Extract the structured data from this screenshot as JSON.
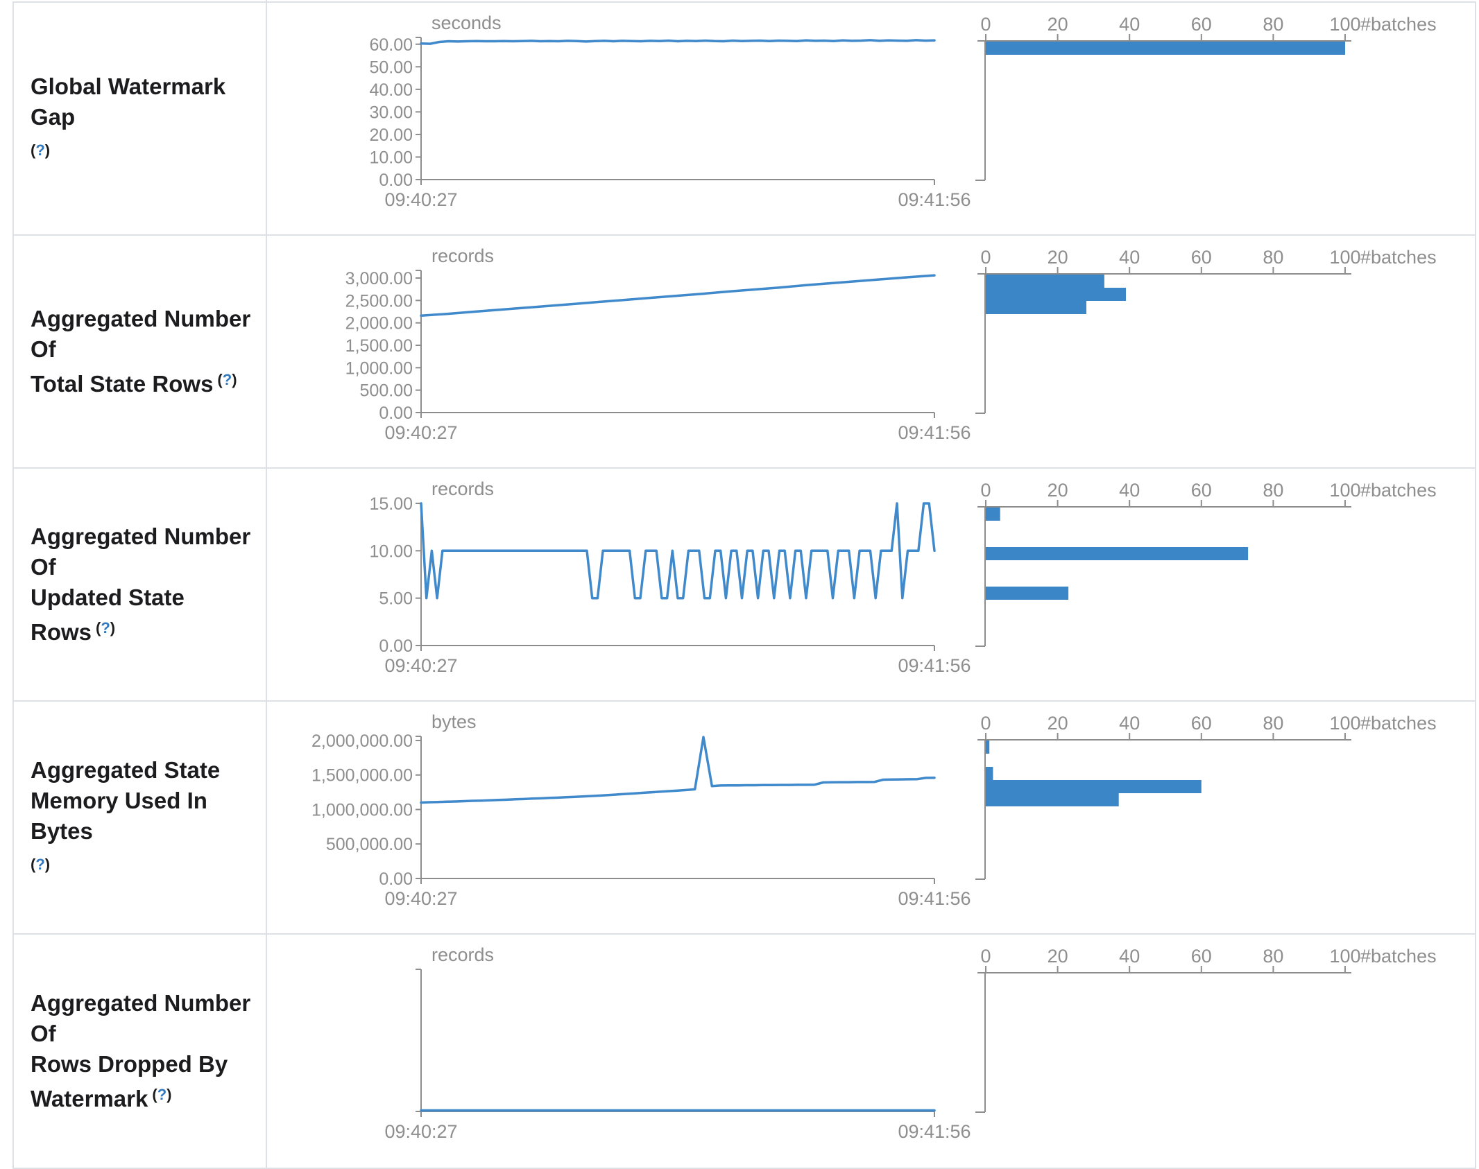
{
  "colors": {
    "bar_fill": "#3b86c7",
    "line_stroke": "#4089cb",
    "axis_line": "#8d8d8d",
    "chart_text": "#8e8e8e",
    "label_text": "#1c1c1e",
    "help_question": "#3178be",
    "table_border": "#dde1e6"
  },
  "axis": {
    "time_start_label": "09:40:27",
    "time_end_label": "09:41:56",
    "hist_ticks": [
      {
        "v": 0,
        "label": "0"
      },
      {
        "v": 20,
        "label": "20"
      },
      {
        "v": 40,
        "label": "40"
      },
      {
        "v": 60,
        "label": "60"
      },
      {
        "v": 80,
        "label": "80"
      },
      {
        "v": 100,
        "label": "100"
      }
    ],
    "hist_axis_label": "#batches",
    "hist_x_max": 100
  },
  "help_label": {
    "open": "(",
    "q": "?",
    "close": ")"
  },
  "chart_data": [
    {
      "id": "global-watermark-gap",
      "label_lines": [
        "Global Watermark Gap"
      ],
      "help_own_line": true,
      "timeline": {
        "type": "line",
        "unit": "seconds",
        "y_domain_max": 63,
        "y_ticks": [
          {
            "v": 0,
            "label": "0.00"
          },
          {
            "v": 10,
            "label": "10.00"
          },
          {
            "v": 20,
            "label": "20.00"
          },
          {
            "v": 30,
            "label": "30.00"
          },
          {
            "v": 40,
            "label": "40.00"
          },
          {
            "v": 50,
            "label": "50.00"
          },
          {
            "v": 60,
            "label": "60.00"
          }
        ],
        "values": [
          60.3,
          60.2,
          61.0,
          61.3,
          61.2,
          61.3,
          61.4,
          61.3,
          61.3,
          61.4,
          61.3,
          61.4,
          61.5,
          61.3,
          61.4,
          61.3,
          61.5,
          61.4,
          61.2,
          61.4,
          61.5,
          61.3,
          61.5,
          61.4,
          61.3,
          61.5,
          61.4,
          61.6,
          61.3,
          61.5,
          61.4,
          61.6,
          61.4,
          61.3,
          61.6,
          61.4,
          61.5,
          61.6,
          61.4,
          61.6,
          61.5,
          61.4,
          61.7,
          61.5,
          61.6,
          61.4,
          61.7,
          61.5,
          61.6,
          61.8,
          61.5,
          61.7,
          61.6,
          61.5,
          61.8,
          61.6,
          61.7
        ]
      },
      "histogram": {
        "type": "bar",
        "bars": [
          {
            "count": 100,
            "bin_y": 56
          }
        ]
      }
    },
    {
      "id": "aggregated-number-of-total-state-rows",
      "label_lines": [
        "Aggregated Number Of",
        "Total State Rows"
      ],
      "help_own_line": false,
      "timeline": {
        "type": "line",
        "unit": "records",
        "y_domain_max": 3170,
        "y_ticks": [
          {
            "v": 0,
            "label": "0.00"
          },
          {
            "v": 500,
            "label": "500.00"
          },
          {
            "v": 1000,
            "label": "1,000.00"
          },
          {
            "v": 1500,
            "label": "1,500.00"
          },
          {
            "v": 2000,
            "label": "2,000.00"
          },
          {
            "v": 2500,
            "label": "2,500.00"
          },
          {
            "v": 3000,
            "label": "3,000.00"
          }
        ],
        "values": [
          2160,
          2200,
          2245,
          2290,
          2335,
          2380,
          2425,
          2470,
          2515,
          2560,
          2605,
          2650,
          2700,
          2745,
          2790,
          2840,
          2885,
          2930,
          2975,
          3020,
          3060
        ]
      },
      "histogram": {
        "type": "bar",
        "bars": [
          {
            "count": 33,
            "bin_y": 56
          },
          {
            "count": 39,
            "bin_y": 75
          },
          {
            "count": 28,
            "bin_y": 94
          }
        ]
      }
    },
    {
      "id": "aggregated-number-of-updated-state-rows",
      "label_lines": [
        "Aggregated Number Of",
        "Updated State Rows"
      ],
      "help_own_line": false,
      "timeline": {
        "type": "line",
        "unit": "records",
        "y_domain_max": 15,
        "y_ticks": [
          {
            "v": 0,
            "label": "0.00"
          },
          {
            "v": 5,
            "label": "5.00"
          },
          {
            "v": 10,
            "label": "10.00"
          },
          {
            "v": 15,
            "label": "15.00"
          }
        ],
        "values": [
          15,
          5,
          10,
          5,
          10,
          10,
          10,
          10,
          10,
          10,
          10,
          10,
          10,
          10,
          10,
          10,
          10,
          10,
          10,
          10,
          10,
          10,
          10,
          10,
          10,
          10,
          10,
          10,
          10,
          10,
          10,
          10,
          5,
          5,
          10,
          10,
          10,
          10,
          10,
          10,
          5,
          5,
          10,
          10,
          10,
          5,
          5,
          10,
          5,
          5,
          10,
          10,
          10,
          5,
          5,
          10,
          10,
          5,
          10,
          10,
          5,
          10,
          10,
          5,
          10,
          10,
          5,
          10,
          10,
          5,
          10,
          10,
          5,
          10,
          10,
          10,
          10,
          5,
          10,
          10,
          10,
          5,
          10,
          10,
          10,
          5,
          10,
          10,
          10,
          15,
          5,
          10,
          10,
          10,
          15,
          15,
          10
        ]
      },
      "histogram": {
        "type": "bar",
        "bars": [
          {
            "count": 4,
            "bin_y": 56
          },
          {
            "count": 73,
            "bin_y": 113
          },
          {
            "count": 23,
            "bin_y": 170
          }
        ]
      }
    },
    {
      "id": "aggregated-state-memory-used-in-bytes",
      "label_lines": [
        "Aggregated State",
        "Memory Used In Bytes"
      ],
      "help_own_line": true,
      "timeline": {
        "type": "line",
        "unit": "bytes",
        "y_domain_max": 2060000,
        "y_ticks": [
          {
            "v": 0,
            "label": "0.00"
          },
          {
            "v": 500000,
            "label": "500,000.00"
          },
          {
            "v": 1000000,
            "label": "1,000,000.00"
          },
          {
            "v": 1500000,
            "label": "1,500,000.00"
          },
          {
            "v": 2000000,
            "label": "2,000,000.00"
          }
        ],
        "values": [
          1100000,
          1105000,
          1108000,
          1112000,
          1115000,
          1120000,
          1125000,
          1128000,
          1132000,
          1138000,
          1142000,
          1148000,
          1152000,
          1158000,
          1162000,
          1168000,
          1172000,
          1178000,
          1184000,
          1190000,
          1196000,
          1202000,
          1210000,
          1218000,
          1226000,
          1234000,
          1242000,
          1250000,
          1258000,
          1266000,
          1274000,
          1282000,
          1292000,
          2050000,
          1340000,
          1348000,
          1350000,
          1350000,
          1352000,
          1352000,
          1354000,
          1354000,
          1356000,
          1356000,
          1358000,
          1358000,
          1360000,
          1392000,
          1394000,
          1396000,
          1396000,
          1398000,
          1398000,
          1400000,
          1432000,
          1434000,
          1436000,
          1438000,
          1440000,
          1458000,
          1460000
        ]
      },
      "histogram": {
        "type": "bar",
        "bars": [
          {
            "count": 1,
            "bin_y": 56
          },
          {
            "count": 2,
            "bin_y": 94
          },
          {
            "count": 60,
            "bin_y": 113
          },
          {
            "count": 37,
            "bin_y": 132
          }
        ]
      }
    },
    {
      "id": "aggregated-number-of-rows-dropped-by-watermark",
      "label_lines": [
        "Aggregated Number Of",
        "Rows Dropped By",
        "Watermark"
      ],
      "help_own_line": false,
      "timeline": {
        "type": "line",
        "unit": "records",
        "y_domain_max": 1,
        "y_ticks": [],
        "values": [
          0,
          0,
          0,
          0,
          0,
          0,
          0,
          0,
          0,
          0,
          0,
          0,
          0,
          0,
          0,
          0,
          0,
          0,
          0,
          0,
          0
        ]
      },
      "histogram": {
        "type": "bar",
        "bars": []
      }
    }
  ]
}
